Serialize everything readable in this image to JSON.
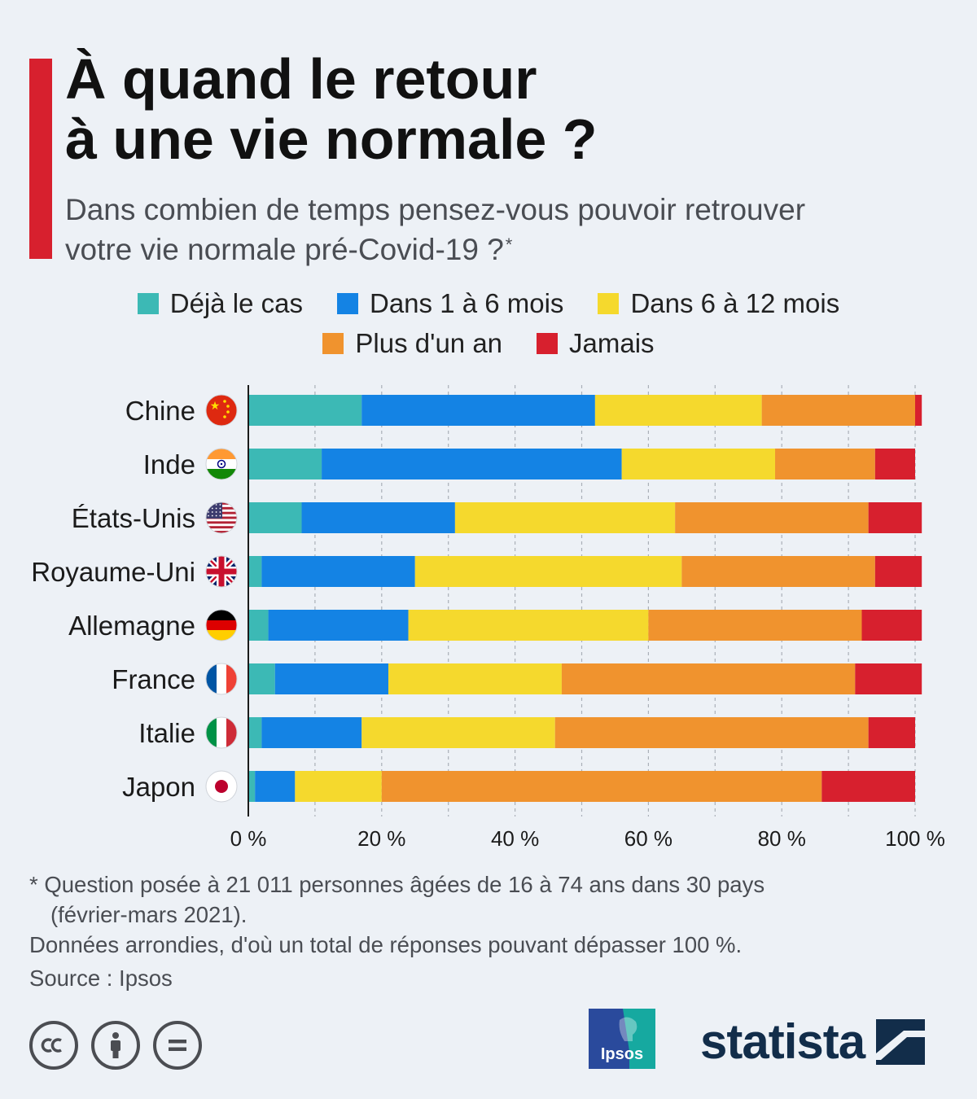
{
  "title_line1": "À quand le retour",
  "title_line2": "à une vie normale ?",
  "subtitle_line1": "Dans combien de temps pensez-vous pouvoir retrouver",
  "subtitle_line2": "votre vie normale pré-Covid-19 ?",
  "subtitle_mark": "*",
  "colors": {
    "accent": "#d7202e",
    "deja": "#3cb9b5",
    "m1_6": "#1483e4",
    "m6_12": "#f5d92d",
    "plus_an": "#f0932e",
    "jamais": "#d7202e"
  },
  "chart_data": {
    "type": "bar",
    "orientation": "horizontal",
    "stacked": true,
    "categories": [
      "Chine",
      "Inde",
      "États-Unis",
      "Royaume-Uni",
      "Allemagne",
      "France",
      "Italie",
      "Japon"
    ],
    "series": [
      {
        "name": "Déjà le cas",
        "color": "#3cb9b5",
        "values": [
          17,
          11,
          8,
          2,
          3,
          4,
          2,
          1
        ]
      },
      {
        "name": "Dans 1 à 6 mois",
        "color": "#1483e4",
        "values": [
          35,
          45,
          23,
          23,
          21,
          17,
          15,
          6
        ]
      },
      {
        "name": "Dans 6 à 12 mois",
        "color": "#f5d92d",
        "values": [
          25,
          23,
          33,
          40,
          36,
          26,
          29,
          13
        ]
      },
      {
        "name": "Plus d'un an",
        "color": "#f0932e",
        "values": [
          23,
          15,
          29,
          29,
          32,
          44,
          47,
          66
        ]
      },
      {
        "name": "Jamais",
        "color": "#d7202e",
        "values": [
          1,
          6,
          8,
          7,
          9,
          10,
          7,
          14
        ]
      }
    ],
    "x_ticks": [
      "0 %",
      "20 %",
      "40 %",
      "60 %",
      "80 %",
      "100 %"
    ],
    "xlim": [
      0,
      100
    ],
    "grid": "vertical dashed",
    "legend": "top-center"
  },
  "flags": [
    "china-flag-icon",
    "india-flag-icon",
    "usa-flag-icon",
    "uk-flag-icon",
    "germany-flag-icon",
    "france-flag-icon",
    "italy-flag-icon",
    "japan-flag-icon"
  ],
  "footnote": {
    "line1": "* Question posée à 21 011 personnes âgées de 16 à 74 ans dans 30 pays",
    "line2": "(février-mars 2021).",
    "line3": "Données arrondies, d'où un total de réponses pouvant dépasser 100 %.",
    "source": "Source : Ipsos"
  },
  "logos": {
    "ipsos": "Ipsos",
    "statista": "statista"
  }
}
